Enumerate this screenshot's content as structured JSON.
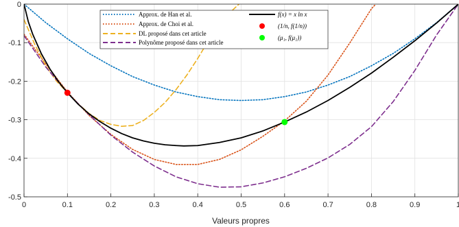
{
  "chart_data": {
    "type": "line",
    "title": "",
    "xlabel": "Valeurs propres",
    "ylabel": "",
    "xlim": [
      0,
      1
    ],
    "ylim": [
      -0.5,
      0
    ],
    "x_ticks": [
      "0",
      "0.1",
      "0.2",
      "0.3",
      "0.4",
      "0.5",
      "0.6",
      "0.7",
      "0.8",
      "0.9",
      "1"
    ],
    "y_ticks": [
      "0",
      "-0.1",
      "-0.2",
      "-0.3",
      "-0.4",
      "-0.5"
    ],
    "grid": true,
    "legend_position": "top-center",
    "legend_left": [
      "Approx. de Han et al.",
      "Approx. de Choi et al.",
      "DL proposé dans cet article",
      "Polynôme proposé dans cet article"
    ],
    "legend_right": [
      "f(x) = x ln x",
      "(1/n, f(1/n))",
      "(μ₁, f(μ₁))"
    ],
    "series": [
      {
        "name": "Approx. de Han et al.",
        "color": "#0072BD",
        "dash": "dotted",
        "x": [
          0,
          0.05,
          0.1,
          0.15,
          0.2,
          0.25,
          0.3,
          0.35,
          0.4,
          0.45,
          0.5,
          0.55,
          0.6,
          0.65,
          0.7,
          0.75,
          0.8,
          0.85,
          0.9,
          0.95,
          1.0
        ],
        "y": [
          0,
          -0.048,
          -0.09,
          -0.128,
          -0.16,
          -0.188,
          -0.21,
          -0.228,
          -0.24,
          -0.248,
          -0.25,
          -0.248,
          -0.24,
          -0.228,
          -0.21,
          -0.188,
          -0.16,
          -0.128,
          -0.09,
          -0.048,
          0
        ]
      },
      {
        "name": "Approx. de Choi et al.",
        "color": "#D95319",
        "dash": "dotted",
        "x": [
          0,
          0.05,
          0.1,
          0.15,
          0.2,
          0.25,
          0.3,
          0.35,
          0.4,
          0.45,
          0.5,
          0.55,
          0.6,
          0.65,
          0.7,
          0.75,
          0.8,
          0.81
        ],
        "y": [
          -0.078,
          -0.155,
          -0.228,
          -0.289,
          -0.338,
          -0.377,
          -0.403,
          -0.416,
          -0.416,
          -0.403,
          -0.378,
          -0.343,
          -0.303,
          -0.252,
          -0.184,
          -0.101,
          -0.012,
          0
        ]
      },
      {
        "name": "DL proposé dans cet article",
        "color": "#EDB120",
        "dash": "dashed",
        "x": [
          0,
          0.025,
          0.05,
          0.075,
          0.1,
          0.125,
          0.15,
          0.175,
          0.2,
          0.225,
          0.25,
          0.275,
          0.3,
          0.325,
          0.35,
          0.375,
          0.4,
          0.425,
          0.45,
          0.475,
          0.495
        ],
        "y": [
          -0.04,
          -0.105,
          -0.16,
          -0.2,
          -0.23,
          -0.259,
          -0.284,
          -0.302,
          -0.312,
          -0.317,
          -0.315,
          -0.302,
          -0.281,
          -0.255,
          -0.222,
          -0.184,
          -0.141,
          -0.094,
          -0.054,
          -0.021,
          0
        ]
      },
      {
        "name": "Polynôme proposé dans cet article",
        "color": "#7E2F8E",
        "dash": "dashed",
        "x": [
          0,
          0.05,
          0.1,
          0.15,
          0.2,
          0.25,
          0.3,
          0.35,
          0.4,
          0.45,
          0.5,
          0.55,
          0.6,
          0.65,
          0.7,
          0.75,
          0.8,
          0.85,
          0.9,
          0.95,
          1.0
        ],
        "y": [
          -0.082,
          -0.163,
          -0.23,
          -0.287,
          -0.34,
          -0.384,
          -0.42,
          -0.448,
          -0.466,
          -0.475,
          -0.474,
          -0.464,
          -0.448,
          -0.426,
          -0.399,
          -0.364,
          -0.318,
          -0.253,
          -0.172,
          -0.08,
          0
        ]
      },
      {
        "name": "f(x) = x ln x",
        "color": "#000000",
        "dash": "solid",
        "x": [
          0,
          0.01,
          0.02,
          0.04,
          0.06,
          0.08,
          0.1,
          0.125,
          0.15,
          0.175,
          0.2,
          0.225,
          0.25,
          0.275,
          0.3,
          0.325,
          0.35,
          0.368,
          0.4,
          0.45,
          0.5,
          0.55,
          0.6,
          0.65,
          0.7,
          0.75,
          0.8,
          0.85,
          0.9,
          0.95,
          1.0
        ],
        "y": [
          0,
          -0.046,
          -0.078,
          -0.129,
          -0.169,
          -0.202,
          -0.23,
          -0.26,
          -0.285,
          -0.305,
          -0.322,
          -0.336,
          -0.347,
          -0.355,
          -0.361,
          -0.365,
          -0.367,
          -0.368,
          -0.367,
          -0.359,
          -0.347,
          -0.329,
          -0.306,
          -0.28,
          -0.25,
          -0.216,
          -0.179,
          -0.138,
          -0.095,
          -0.049,
          0
        ]
      }
    ],
    "markers": [
      {
        "name": "(1/n, f(1/n))",
        "color": "#FF0000",
        "x": 0.1,
        "y": -0.23
      },
      {
        "name": "(μ₁, f(μ₁))",
        "color": "#00FF00",
        "x": 0.6,
        "y": -0.306
      }
    ]
  }
}
